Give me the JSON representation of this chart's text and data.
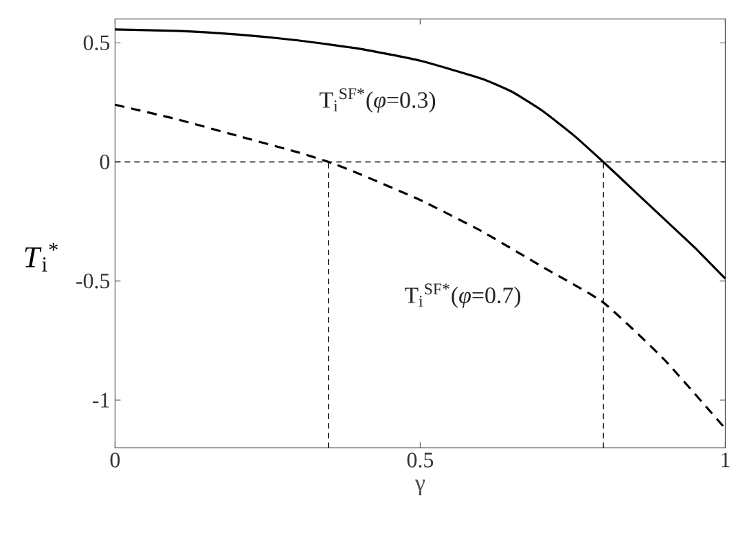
{
  "chart_data": {
    "type": "line",
    "xlabel": "γ",
    "ylabel": "*T*$_{i}$$^{*}$",
    "xlim": [
      0,
      1
    ],
    "ylim": [
      -1.2,
      0.6
    ],
    "xticks": [
      0,
      0.5,
      1
    ],
    "yticks": [
      -1,
      -0.5,
      0,
      0.5
    ],
    "grid": false,
    "marker": "none",
    "series": [
      {
        "color": "#000000",
        "line_style": "solid",
        "x": [
          0,
          0.1,
          0.2,
          0.3,
          0.4,
          0.5,
          0.6,
          0.65,
          0.7,
          0.75,
          0.8,
          0.85,
          0.9,
          0.95,
          1
        ],
        "values": [
          0.556,
          0.55,
          0.535,
          0.51,
          0.475,
          0.425,
          0.35,
          0.295,
          0.215,
          0.115,
          0.0,
          -0.12,
          -0.24,
          -0.36,
          -0.49
        ]
      },
      {
        "color": "#000000",
        "line_style": "dashed",
        "x": [
          0,
          0.1,
          0.2,
          0.3,
          0.35,
          0.4,
          0.5,
          0.6,
          0.7,
          0.8,
          0.9,
          1
        ],
        "values": [
          0.24,
          0.18,
          0.11,
          0.04,
          0.0,
          -0.05,
          -0.16,
          -0.29,
          -0.44,
          -0.59,
          -0.83,
          -1.12
        ]
      },
      {
        "color": "#000000",
        "line_style": "dotted",
        "x": [
          0.35,
          0.35
        ],
        "values": [
          -1.2,
          0
        ]
      },
      {
        "color": "#000000",
        "line_style": "dotted",
        "x": [
          0.8,
          0.8
        ],
        "values": [
          -1.2,
          0
        ]
      }
    ],
    "ref_lines": [
      {
        "axis": "y",
        "value": 0,
        "color": "#000000",
        "line_style": "dotted"
      }
    ],
    "annotations": [
      "T$_{i}$$^{SF*}$(*φ*=0.3)",
      "T$_{i}$$^{SF*}$(*φ*=0.7)"
    ]
  }
}
